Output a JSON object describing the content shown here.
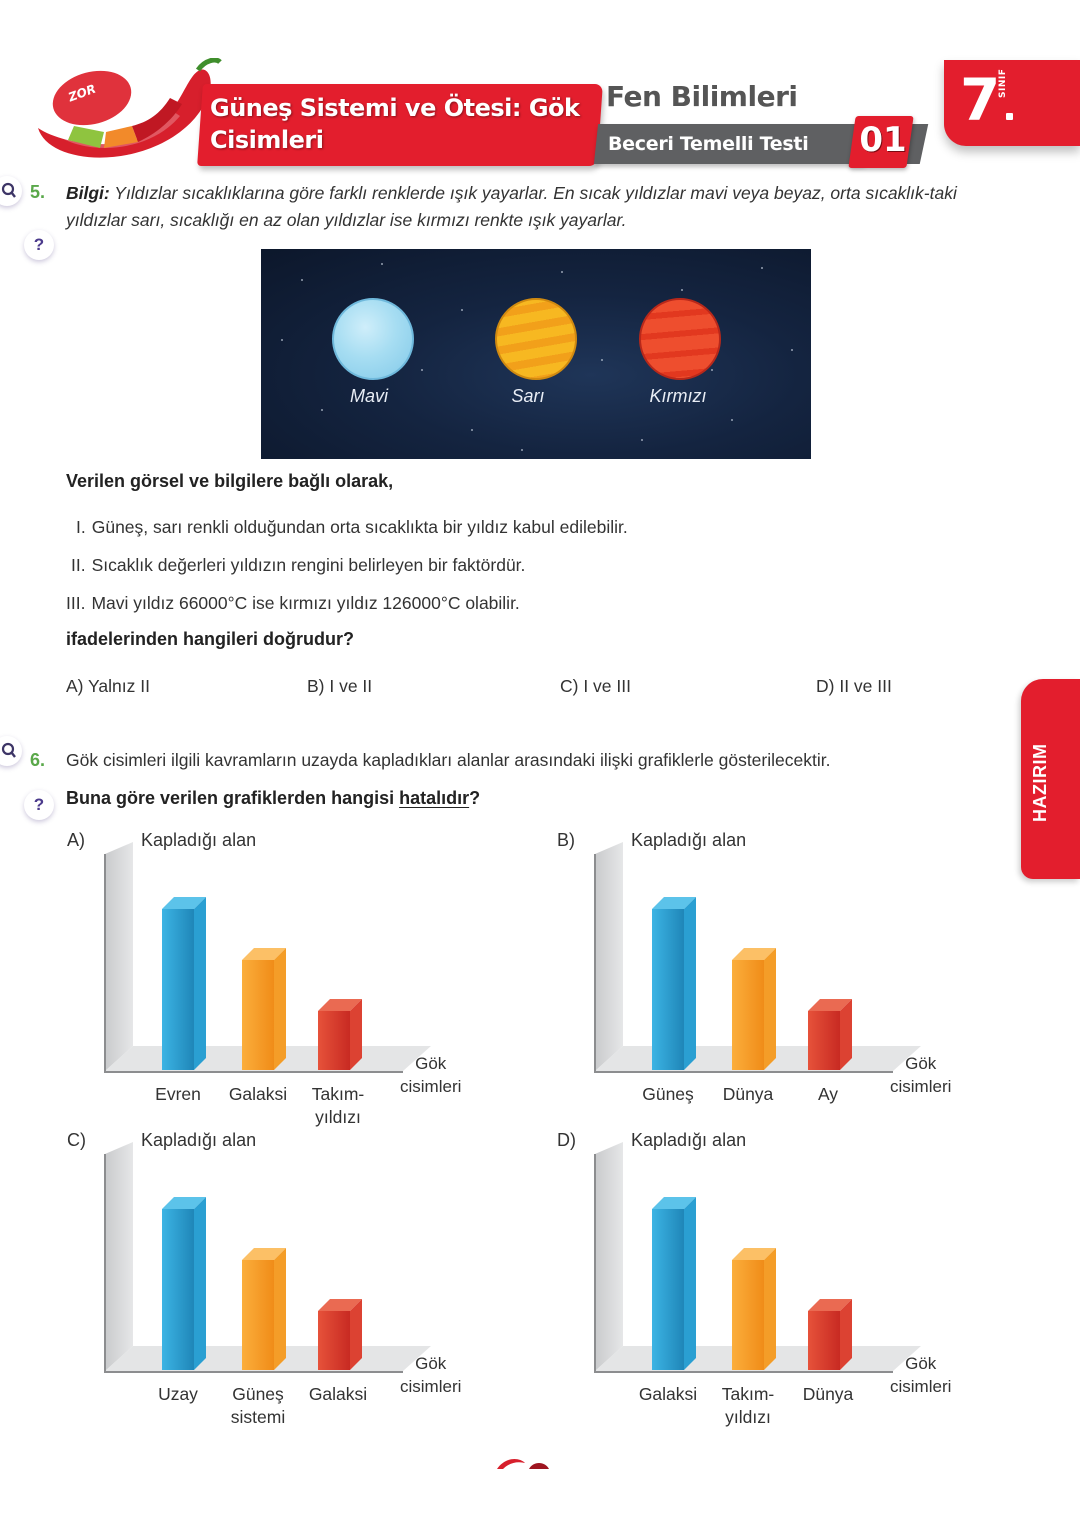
{
  "header": {
    "difficulty_badge": "ZOR",
    "unit_title": "Güneş Sistemi ve Ötesi: Gök Cisimleri",
    "subject": "Fen Bilimleri",
    "test_name": "Beceri Temelli Testi",
    "test_number": "01",
    "grade": "7",
    "grade_word": "SINIF"
  },
  "colors": {
    "brand_red": "#e31e2d",
    "header_gray": "#5f6062",
    "question_number_green": "#5aa84a",
    "bar_blue": "#2fa6d8",
    "bar_orange": "#f59a23",
    "bar_red": "#d93a2c"
  },
  "side_tab": {
    "label": "HAZIRIM"
  },
  "question5": {
    "number": "5.",
    "info_label": "Bilgi:",
    "info_text": " Yıldızlar sıcaklıklarına göre farklı renklerde ışık yayarlar. En sıcak yıldızlar mavi veya beyaz, orta sıcaklık-taki yıldızlar sarı, sıcaklığı en az olan yıldızlar ise kırmızı renkte ışık yayarlar.",
    "image_labels": [
      "Mavi",
      "Sarı",
      "Kırmızı"
    ],
    "lead": "Verilen görsel ve bilgilere bağlı olarak,",
    "statements": [
      {
        "roman": "I.",
        "text": "Güneş, sarı renkli olduğundan orta sıcaklıkta bir yıldız kabul edilebilir."
      },
      {
        "roman": "II.",
        "text": "Sıcaklık değerleri yıldızın rengini belirleyen bir faktördür."
      },
      {
        "roman": "III.",
        "text": "Mavi yıldız 66000°C ise kırmızı yıldız 126000°C olabilir."
      }
    ],
    "question": "ifadelerinden hangileri doğrudur?",
    "choices": [
      "A) Yalnız II",
      "B) I ve II",
      "C) I ve III",
      "D) II ve III"
    ]
  },
  "question6": {
    "number": "6.",
    "text": "Gök cisimleri ilgili kavramların uzayda kapladıkları alanlar arasındaki ilişki grafiklerle gösterilecektir.",
    "ask_before": "Buna göre verilen grafiklerden hangisi ",
    "ask_underlined": "hatalıdır",
    "ask_after": "?"
  },
  "chart_data": [
    {
      "type": "bar",
      "option": "A)",
      "title": "",
      "ylabel": "Kapladığı alan",
      "xlabel": "Gök cisimleri",
      "categories": [
        "Evren",
        "Galaksi",
        "Takım-yıldızı"
      ],
      "category_lines": [
        [
          "Evren"
        ],
        [
          "Galaksi"
        ],
        [
          "Takım-",
          "yıldızı"
        ]
      ],
      "values": [
        3,
        2,
        1
      ],
      "ylim": [
        0,
        3.5
      ],
      "grid": false
    },
    {
      "type": "bar",
      "option": "B)",
      "title": "",
      "ylabel": "Kapladığı alan",
      "xlabel": "Gök cisimleri",
      "categories": [
        "Güneş",
        "Dünya",
        "Ay"
      ],
      "category_lines": [
        [
          "Güneş"
        ],
        [
          "Dünya"
        ],
        [
          "Ay"
        ]
      ],
      "values": [
        3,
        2,
        1
      ],
      "ylim": [
        0,
        3.5
      ],
      "grid": false
    },
    {
      "type": "bar",
      "option": "C)",
      "title": "",
      "ylabel": "Kapladığı alan",
      "xlabel": "Gök cisimleri",
      "categories": [
        "Uzay",
        "Güneş sistemi",
        "Galaksi"
      ],
      "category_lines": [
        [
          "Uzay"
        ],
        [
          "Güneş",
          "sistemi"
        ],
        [
          "Galaksi"
        ]
      ],
      "values": [
        3,
        2,
        1
      ],
      "ylim": [
        0,
        3.5
      ],
      "grid": false
    },
    {
      "type": "bar",
      "option": "D)",
      "title": "",
      "ylabel": "Kapladığı alan",
      "xlabel": "Gök cisimleri",
      "categories": [
        "Galaksi",
        "Takım-yıldızı",
        "Dünya"
      ],
      "category_lines": [
        [
          "Galaksi"
        ],
        [
          "Takım-",
          "yıldızı"
        ],
        [
          "Dünya"
        ]
      ],
      "values": [
        3,
        2,
        1
      ],
      "ylim": [
        0,
        3.5
      ],
      "grid": false
    }
  ]
}
